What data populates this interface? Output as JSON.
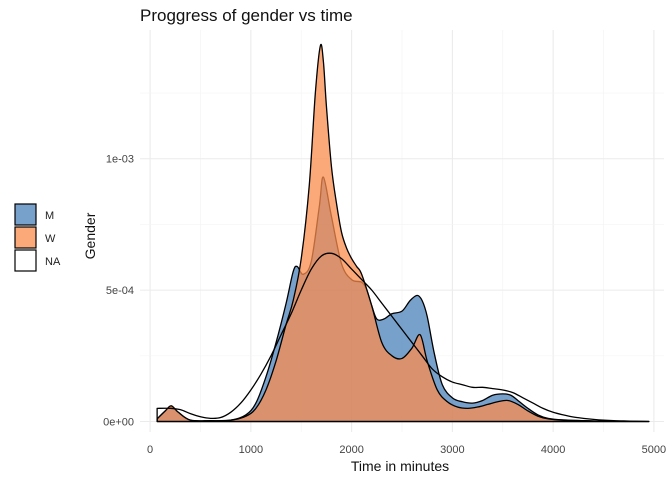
{
  "chart_data": {
    "type": "area",
    "title": "Proggress of gender vs time",
    "xlabel": "Time in minutes",
    "ylabel": "Gender",
    "xlim": [
      -100,
      5100
    ],
    "ylim": [
      -4e-05,
      0.00149
    ],
    "x_ticks": [
      0,
      1000,
      2000,
      3000,
      4000,
      5000
    ],
    "x_tick_labels": [
      "0",
      "1000",
      "2000",
      "3000",
      "4000",
      "5000"
    ],
    "y_ticks": [
      0,
      0.0005,
      0.001
    ],
    "y_tick_labels": [
      "0e+00",
      "5e-04",
      "1e-03"
    ],
    "grid": true,
    "legend_position": "left",
    "series": [
      {
        "name": "M",
        "fill": "#4a82ba",
        "opacity": 0.75,
        "x": [
          70,
          150,
          210,
          280,
          400,
          600,
          800,
          950,
          1050,
          1150,
          1250,
          1350,
          1420,
          1460,
          1520,
          1600,
          1680,
          1720,
          1800,
          1900,
          2000,
          2100,
          2150,
          2200,
          2250,
          2320,
          2400,
          2500,
          2580,
          2650,
          2700,
          2750,
          2820,
          2900,
          3000,
          3100,
          3200,
          3300,
          3400,
          3500,
          3580,
          3650,
          3750,
          3850,
          3950,
          4100,
          4300,
          4500,
          4700,
          4950
        ],
        "y": [
          1e-05,
          4e-05,
          5.5e-05,
          3.5e-05,
          5e-06,
          3e-06,
          5e-06,
          2.5e-05,
          7e-05,
          0.00017,
          0.0003,
          0.00045,
          0.00057,
          0.00059,
          0.00056,
          0.00061,
          0.00082,
          0.00093,
          0.00078,
          0.0006,
          0.00054,
          0.00053,
          0.0005,
          0.00044,
          0.00039,
          0.00039,
          0.00041,
          0.00042,
          0.00046,
          0.00048,
          0.00046,
          0.0004,
          0.00026,
          0.00014,
          9e-05,
          7.5e-05,
          7e-05,
          8e-05,
          0.0001,
          0.000105,
          0.0001,
          8e-05,
          5e-05,
          2.5e-05,
          1.2e-05,
          6e-06,
          3e-06,
          1e-06,
          5e-07,
          0
        ]
      },
      {
        "name": "W",
        "fill": "#fb8c4e",
        "opacity": 0.75,
        "x": [
          70,
          150,
          210,
          280,
          400,
          600,
          800,
          950,
          1050,
          1150,
          1250,
          1350,
          1420,
          1500,
          1580,
          1640,
          1690,
          1720,
          1750,
          1800,
          1850,
          1900,
          1950,
          2000,
          2050,
          2100,
          2200,
          2300,
          2400,
          2500,
          2600,
          2680,
          2750,
          2850,
          2950,
          3050,
          3150,
          3250,
          3350,
          3450,
          3550,
          3650,
          3750,
          3850,
          3950,
          4100,
          4300,
          4500,
          4700,
          4950
        ],
        "y": [
          1e-05,
          4e-05,
          6e-05,
          3.5e-05,
          5e-06,
          3e-06,
          5e-06,
          2e-05,
          5e-05,
          0.00012,
          0.00023,
          0.00037,
          0.00046,
          0.00062,
          0.0009,
          0.00125,
          0.00143,
          0.00137,
          0.0012,
          0.00097,
          0.00083,
          0.00072,
          0.00066,
          0.00062,
          0.00059,
          0.00056,
          0.00044,
          0.0003,
          0.00025,
          0.00024,
          0.00028,
          0.00033,
          0.00023,
          0.00012,
          7.5e-05,
          5.5e-05,
          5e-05,
          5.5e-05,
          6.5e-05,
          7.5e-05,
          8e-05,
          6.5e-05,
          4e-05,
          2e-05,
          1e-05,
          5e-06,
          3e-06,
          1e-06,
          5e-07,
          0
        ]
      },
      {
        "name": "NA",
        "fill": "none",
        "opacity": 1,
        "x": [
          70,
          200,
          300,
          400,
          500,
          600,
          700,
          800,
          900,
          1000,
          1100,
          1200,
          1300,
          1400,
          1500,
          1600,
          1700,
          1800,
          1900,
          2000,
          2100,
          2200,
          2300,
          2400,
          2500,
          2600,
          2700,
          2800,
          2900,
          3000,
          3100,
          3200,
          3300,
          3400,
          3500,
          3600,
          3700,
          3800,
          3900,
          4000,
          4100,
          4200,
          4300,
          4400,
          4500,
          4600,
          4700,
          4800,
          4950
        ],
        "y": [
          5e-05,
          5e-05,
          4.5e-05,
          3e-05,
          1.8e-05,
          1.2e-05,
          1.5e-05,
          3.5e-05,
          7e-05,
          0.00012,
          0.00018,
          0.00025,
          0.00033,
          0.00041,
          0.0005,
          0.00058,
          0.00063,
          0.00064,
          0.00062,
          0.00058,
          0.00054,
          0.0005,
          0.00045,
          0.0004,
          0.00035,
          0.0003,
          0.00025,
          0.0002,
          0.00017,
          0.00015,
          0.00014,
          0.00013,
          0.00013,
          0.000125,
          0.00012,
          0.00011,
          9e-05,
          7e-05,
          5e-05,
          3.5e-05,
          2.5e-05,
          1.7e-05,
          1.2e-05,
          8e-06,
          5e-06,
          3e-06,
          2e-06,
          1e-06,
          0
        ]
      }
    ]
  }
}
